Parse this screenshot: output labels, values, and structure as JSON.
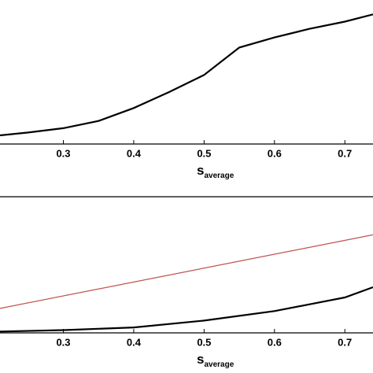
{
  "chart_data": [
    {
      "type": "line",
      "xlabel": "s",
      "xlabel_sub": "average",
      "xlim": [
        0.21,
        0.74
      ],
      "ylim": [
        0,
        1
      ],
      "xticks": [
        0.3,
        0.4,
        0.5,
        0.6,
        0.7
      ],
      "series": [
        {
          "color": "#000000",
          "x": [
            0.21,
            0.25,
            0.3,
            0.35,
            0.4,
            0.45,
            0.5,
            0.55,
            0.6,
            0.65,
            0.7,
            0.74
          ],
          "values": [
            0.06,
            0.08,
            0.11,
            0.16,
            0.25,
            0.36,
            0.48,
            0.67,
            0.74,
            0.8,
            0.85,
            0.9
          ]
        }
      ]
    },
    {
      "type": "line",
      "xlabel": "s",
      "xlabel_sub": "average",
      "xlim": [
        0.21,
        0.74
      ],
      "ylim": [
        0,
        1
      ],
      "xticks": [
        0.3,
        0.4,
        0.5,
        0.6,
        0.7
      ],
      "series": [
        {
          "color": "#c0504d",
          "x": [
            0.21,
            0.74
          ],
          "values": [
            0.18,
            0.72
          ]
        },
        {
          "color": "#000000",
          "x": [
            0.21,
            0.3,
            0.4,
            0.5,
            0.6,
            0.65,
            0.7,
            0.74
          ],
          "values": [
            0.01,
            0.02,
            0.04,
            0.09,
            0.16,
            0.21,
            0.26,
            0.335
          ]
        }
      ]
    }
  ]
}
